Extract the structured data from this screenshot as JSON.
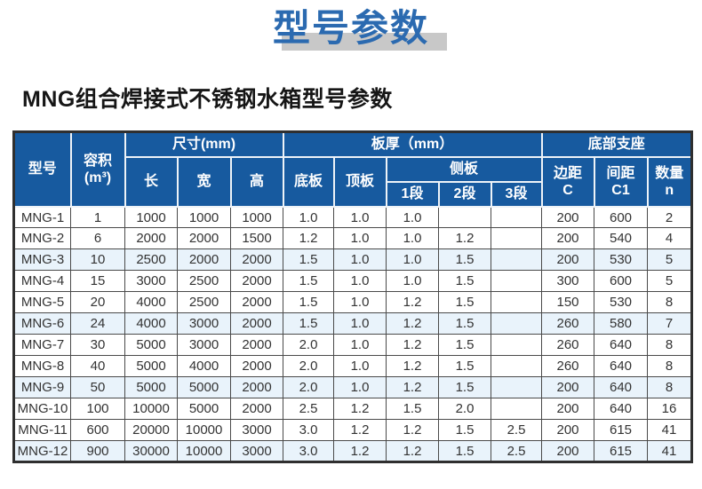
{
  "page": {
    "title": "型号参数",
    "subtitle": "MNG组合焊接式不锈钢水箱型号参数"
  },
  "colors": {
    "header_blue": "#175a9f",
    "title_blue": "#2b6ab0",
    "title_band_gray": "#c8c8c8",
    "row_highlight": "#e9f3fb"
  },
  "table": {
    "header": {
      "model": "型号",
      "volume": "容积\n(m³)",
      "size_group": "尺寸(mm)",
      "length": "长",
      "width": "宽",
      "height": "高",
      "thickness_group": "板厚（mm）",
      "bottom_plate": "底板",
      "top_plate": "顶板",
      "side_plate_group": "侧板",
      "seg1": "1段",
      "seg2": "2段",
      "seg3": "3段",
      "support_group": "底部支座",
      "edge_c": "边距\nC",
      "spacing_c1": "间距\nC1",
      "qty_n": "数量\nn"
    },
    "rows": [
      [
        "MNG-1",
        "1",
        "1000",
        "1000",
        "1000",
        "1.0",
        "1.0",
        "1.0",
        "",
        "",
        "200",
        "600",
        "2"
      ],
      [
        "MNG-2",
        "6",
        "2000",
        "2000",
        "1500",
        "1.2",
        "1.0",
        "1.0",
        "1.2",
        "",
        "200",
        "540",
        "4"
      ],
      [
        "MNG-3",
        "10",
        "2500",
        "2000",
        "2000",
        "1.5",
        "1.0",
        "1.0",
        "1.5",
        "",
        "200",
        "530",
        "5"
      ],
      [
        "MNG-4",
        "15",
        "3000",
        "2500",
        "2000",
        "1.5",
        "1.0",
        "1.0",
        "1.5",
        "",
        "300",
        "600",
        "5"
      ],
      [
        "MNG-5",
        "20",
        "4000",
        "2500",
        "2000",
        "1.5",
        "1.0",
        "1.2",
        "1.5",
        "",
        "150",
        "530",
        "8"
      ],
      [
        "MNG-6",
        "24",
        "4000",
        "3000",
        "2000",
        "1.5",
        "1.0",
        "1.2",
        "1.5",
        "",
        "260",
        "580",
        "7"
      ],
      [
        "MNG-7",
        "30",
        "5000",
        "3000",
        "2000",
        "2.0",
        "1.0",
        "1.2",
        "1.5",
        "",
        "260",
        "640",
        "8"
      ],
      [
        "MNG-8",
        "40",
        "5000",
        "4000",
        "2000",
        "2.0",
        "1.0",
        "1.2",
        "1.5",
        "",
        "260",
        "640",
        "8"
      ],
      [
        "MNG-9",
        "50",
        "5000",
        "5000",
        "2000",
        "2.0",
        "1.0",
        "1.2",
        "1.5",
        "",
        "200",
        "640",
        "8"
      ],
      [
        "MNG-10",
        "100",
        "10000",
        "5000",
        "2000",
        "2.5",
        "1.2",
        "1.5",
        "2.0",
        "",
        "200",
        "640",
        "16"
      ],
      [
        "MNG-11",
        "600",
        "20000",
        "10000",
        "3000",
        "3.0",
        "1.2",
        "1.2",
        "1.5",
        "2.5",
        "200",
        "615",
        "41"
      ],
      [
        "MNG-12",
        "900",
        "30000",
        "10000",
        "3000",
        "3.0",
        "1.2",
        "1.2",
        "1.5",
        "2.5",
        "200",
        "615",
        "41"
      ]
    ]
  }
}
